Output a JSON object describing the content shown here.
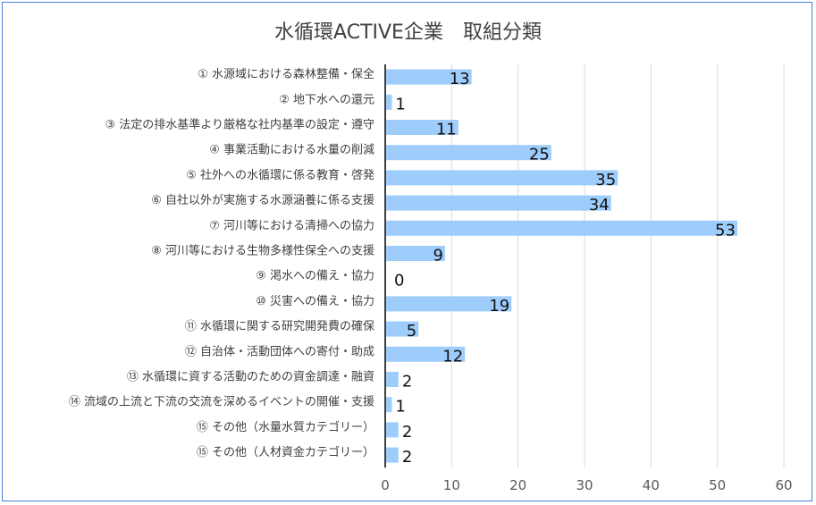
{
  "chart_data": {
    "type": "bar",
    "orientation": "horizontal",
    "title": "水循環ACTIVE企業　取組分類",
    "categories": [
      "① 水源域における森林整備・保全",
      "② 地下水への還元",
      "③ 法定の排水基準より厳格な社内基準の設定・遵守",
      "④ 事業活動における水量の削減",
      "⑤ 社外への水循環に係る教育・啓発",
      "⑥ 自社以外が実施する水源涵養に係る支援",
      "⑦ 河川等における清掃への協力",
      "⑧ 河川等における生物多様性保全への支援",
      "⑨ 渇水への備え・協力",
      "⑩ 災害への備え・協力",
      "⑪ 水循環に関する研究開発費の確保",
      "⑫ 自治体・活動団体への寄付・助成",
      "⑬ 水循環に資する活動のための資金調達・融資",
      "⑭ 流域の上流と下流の交流を深めるイベントの開催・支援",
      "⑮ その他（水量水質カテゴリー）",
      "⑮ その他（人材資金カテゴリー）"
    ],
    "values": [
      13,
      1,
      11,
      25,
      35,
      34,
      53,
      9,
      0,
      19,
      5,
      12,
      2,
      1,
      2,
      2
    ],
    "xlim": [
      0,
      60
    ],
    "xticks": [
      0,
      10,
      20,
      30,
      40,
      50,
      60
    ],
    "grid": true,
    "bar_color": "#9fcdfb",
    "xlabel": "",
    "ylabel": ""
  }
}
